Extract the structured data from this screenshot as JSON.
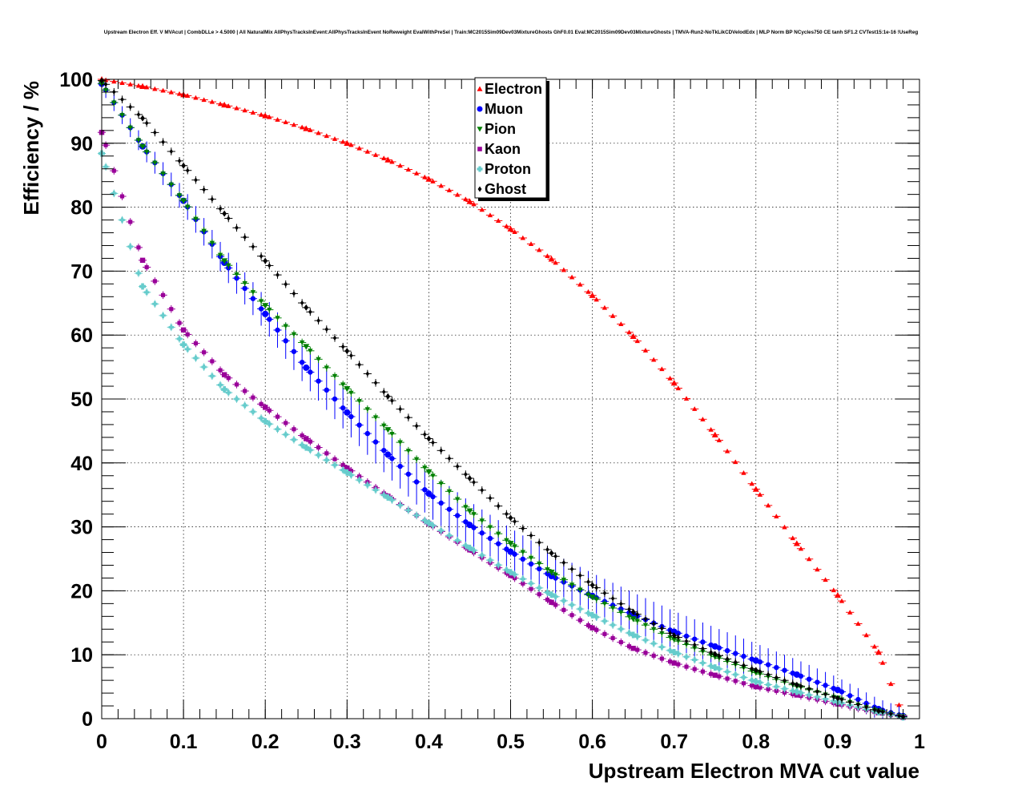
{
  "chart_data": {
    "type": "scatter",
    "title": "Upstream Electron Eff. V MVAcut | CombDLLe > 4.5000 | All NaturalMix AllPhysTracksInEvent:AllPhysTracksInEvent NoReweight EvalWithPreSel | Train:MC2015Sim09Dev03MixtureGhosts GhF0.01 Eval:MC2015Sim09Dev03MixtureGhosts | TMVA-Run2-NoTkLikCDVelodEdx | MLP Norm BP NCycles750 CE tanh SF1.2 CVTest15:1e-16 !UseReg",
    "xlabel": "Upstream Electron MVA cut value",
    "ylabel": "Efficiency / %",
    "xlim": [
      0,
      1
    ],
    "ylim": [
      0,
      100
    ],
    "x_tick_labels": [
      "0",
      "0.1",
      "0.2",
      "0.3",
      "0.4",
      "0.5",
      "0.6",
      "0.7",
      "0.8",
      "0.9",
      "1"
    ],
    "y_tick_labels": [
      "0",
      "10",
      "20",
      "30",
      "40",
      "50",
      "60",
      "70",
      "80",
      "90",
      "100"
    ],
    "grid": true,
    "legend_position": "top-center",
    "series": [
      {
        "name": "Electron",
        "color": "#ff0000",
        "marker": "triangle-up",
        "points": [
          [
            0.0,
            100.0
          ],
          [
            0.05,
            98.9
          ],
          [
            0.1,
            97.6
          ],
          [
            0.15,
            96.0
          ],
          [
            0.2,
            94.3
          ],
          [
            0.25,
            92.3
          ],
          [
            0.3,
            90.0
          ],
          [
            0.35,
            87.4
          ],
          [
            0.4,
            84.4
          ],
          [
            0.45,
            80.9
          ],
          [
            0.5,
            76.6
          ],
          [
            0.55,
            71.9
          ],
          [
            0.6,
            66.2
          ],
          [
            0.65,
            59.8
          ],
          [
            0.7,
            52.5
          ],
          [
            0.75,
            44.4
          ],
          [
            0.8,
            35.9
          ],
          [
            0.85,
            27.4
          ],
          [
            0.9,
            19.3
          ],
          [
            0.95,
            10.4
          ],
          [
            0.98,
            0.5
          ]
        ]
      },
      {
        "name": "Muon",
        "color": "#0000ff",
        "marker": "circle",
        "points": [
          [
            0.0,
            99.3
          ],
          [
            0.05,
            89.5
          ],
          [
            0.1,
            81.0
          ],
          [
            0.15,
            71.3
          ],
          [
            0.2,
            63.3
          ],
          [
            0.25,
            54.9
          ],
          [
            0.3,
            47.9
          ],
          [
            0.35,
            41.3
          ],
          [
            0.4,
            35.2
          ],
          [
            0.45,
            30.3
          ],
          [
            0.5,
            26.1
          ],
          [
            0.55,
            22.3
          ],
          [
            0.6,
            19.2
          ],
          [
            0.65,
            16.3
          ],
          [
            0.7,
            13.6
          ],
          [
            0.75,
            11.3
          ],
          [
            0.8,
            9.1
          ],
          [
            0.85,
            6.9
          ],
          [
            0.9,
            4.5
          ],
          [
            0.95,
            1.5
          ],
          [
            0.98,
            0.4
          ]
        ]
      },
      {
        "name": "Pion",
        "color": "#008000",
        "marker": "triangle-down",
        "points": [
          [
            0.0,
            99.3
          ],
          [
            0.05,
            89.5
          ],
          [
            0.1,
            81.0
          ],
          [
            0.15,
            71.6
          ],
          [
            0.2,
            64.6
          ],
          [
            0.25,
            58.2
          ],
          [
            0.3,
            51.6
          ],
          [
            0.35,
            45.2
          ],
          [
            0.4,
            38.6
          ],
          [
            0.45,
            32.5
          ],
          [
            0.5,
            27.4
          ],
          [
            0.55,
            22.9
          ],
          [
            0.6,
            19.0
          ],
          [
            0.65,
            15.6
          ],
          [
            0.7,
            12.4
          ],
          [
            0.75,
            9.7
          ],
          [
            0.8,
            7.2
          ],
          [
            0.85,
            5.1
          ],
          [
            0.9,
            3.2
          ],
          [
            0.95,
            1.2
          ],
          [
            0.98,
            0.3
          ]
        ]
      },
      {
        "name": "Kaon",
        "color": "#990099",
        "marker": "square",
        "points": [
          [
            0.0,
            91.7
          ],
          [
            0.05,
            71.7
          ],
          [
            0.1,
            60.8
          ],
          [
            0.15,
            53.8
          ],
          [
            0.2,
            48.7
          ],
          [
            0.25,
            43.8
          ],
          [
            0.3,
            39.2
          ],
          [
            0.35,
            34.8
          ],
          [
            0.4,
            30.5
          ],
          [
            0.45,
            26.4
          ],
          [
            0.5,
            22.4
          ],
          [
            0.55,
            18.2
          ],
          [
            0.6,
            14.2
          ],
          [
            0.65,
            11.0
          ],
          [
            0.7,
            8.7
          ],
          [
            0.75,
            6.8
          ],
          [
            0.8,
            5.0
          ],
          [
            0.85,
            3.7
          ],
          [
            0.9,
            2.3
          ],
          [
            0.95,
            0.9
          ],
          [
            0.98,
            0.2
          ]
        ]
      },
      {
        "name": "Proton",
        "color": "#66cccc",
        "marker": "cross",
        "points": [
          [
            0.0,
            88.4
          ],
          [
            0.05,
            67.6
          ],
          [
            0.1,
            58.5
          ],
          [
            0.15,
            51.5
          ],
          [
            0.2,
            46.5
          ],
          [
            0.25,
            42.4
          ],
          [
            0.3,
            38.5
          ],
          [
            0.35,
            34.6
          ],
          [
            0.4,
            30.6
          ],
          [
            0.45,
            26.7
          ],
          [
            0.5,
            22.9
          ],
          [
            0.55,
            19.4
          ],
          [
            0.6,
            16.2
          ],
          [
            0.65,
            13.1
          ],
          [
            0.7,
            10.4
          ],
          [
            0.75,
            8.0
          ],
          [
            0.8,
            5.8
          ],
          [
            0.85,
            4.2
          ],
          [
            0.9,
            2.6
          ],
          [
            0.95,
            1.0
          ],
          [
            0.98,
            0.2
          ]
        ]
      },
      {
        "name": "Ghost",
        "color": "#000000",
        "marker": "diamond",
        "points": [
          [
            0.0,
            99.8
          ],
          [
            0.05,
            93.9
          ],
          [
            0.1,
            86.5
          ],
          [
            0.15,
            79.0
          ],
          [
            0.2,
            71.6
          ],
          [
            0.25,
            64.3
          ],
          [
            0.3,
            57.5
          ],
          [
            0.35,
            50.4
          ],
          [
            0.4,
            43.8
          ],
          [
            0.45,
            37.6
          ],
          [
            0.5,
            31.4
          ],
          [
            0.55,
            25.9
          ],
          [
            0.6,
            20.9
          ],
          [
            0.65,
            16.7
          ],
          [
            0.7,
            13.0
          ],
          [
            0.75,
            10.1
          ],
          [
            0.8,
            7.6
          ],
          [
            0.85,
            5.3
          ],
          [
            0.9,
            3.2
          ],
          [
            0.95,
            1.2
          ],
          [
            0.98,
            0.3
          ]
        ]
      }
    ]
  }
}
